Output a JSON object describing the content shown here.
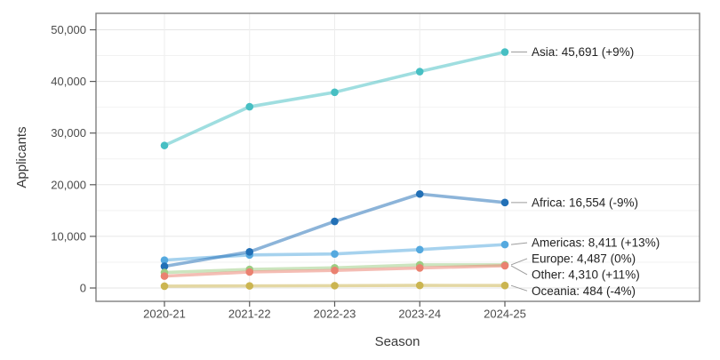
{
  "chart_data": {
    "type": "line",
    "title": "",
    "xlabel": "Season",
    "ylabel": "Applicants",
    "categories": [
      "2020-21",
      "2021-22",
      "2022-23",
      "2023-24",
      "2024-25"
    ],
    "series": [
      {
        "name": "Asia",
        "color": "#47BFC3",
        "values": [
          27600,
          35100,
          37900,
          41900,
          45691
        ],
        "end_label": "Asia: 45,691 (+9%)"
      },
      {
        "name": "Africa",
        "color": "#2270B6",
        "values": [
          4200,
          7000,
          12900,
          18200,
          16554
        ],
        "end_label": "Africa: 16,554 (-9%)"
      },
      {
        "name": "Americas",
        "color": "#55A9DF",
        "values": [
          5400,
          6400,
          6600,
          7440,
          8411
        ],
        "end_label": "Americas: 8,411 (+13%)"
      },
      {
        "name": "Europe",
        "color": "#9ECD84",
        "values": [
          3000,
          3600,
          3900,
          4490,
          4487
        ],
        "end_label": "Europe: 4,487 (0%)"
      },
      {
        "name": "Other",
        "color": "#EA8170",
        "values": [
          2300,
          3100,
          3400,
          3880,
          4310
        ],
        "end_label": "Other: 4,310 (+11%)"
      },
      {
        "name": "Oceania",
        "color": "#CBB551",
        "values": [
          360,
          410,
          450,
          504,
          484
        ],
        "end_label": "Oceania: 484 (-4%)"
      }
    ],
    "ylim": [
      0,
      50000
    ],
    "yticks": [
      0,
      10000,
      20000,
      30000,
      40000,
      50000
    ],
    "ytick_labels": [
      "0",
      "10,000",
      "20,000",
      "30,000",
      "40,000",
      "50,000"
    ],
    "grid": "on",
    "legend": "end-labels-right-of-last-point",
    "colors": {
      "plot_border": "#7f7f7f",
      "major_grid": "#e6e6e6",
      "minor_grid": "#f2f2f2",
      "vertical_grid": "#ededed",
      "tick_mark": "#5a5a5a",
      "connector": "#9c9c9c"
    }
  }
}
